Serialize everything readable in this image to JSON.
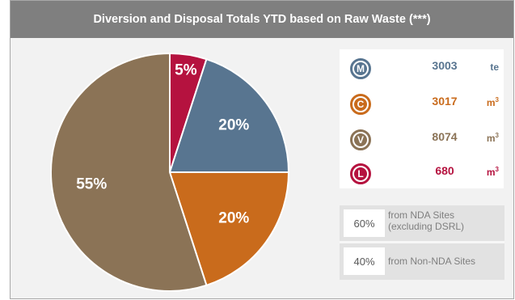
{
  "header": {
    "title": "Diversion and Disposal Totals YTD based on Raw Waste (***)"
  },
  "chart_data": {
    "type": "pie",
    "slices": [
      {
        "category": "L",
        "value": 5,
        "label": "5%",
        "color": "#b5123f"
      },
      {
        "category": "M",
        "value": 20,
        "label": "20%",
        "color": "#587590"
      },
      {
        "category": "C",
        "value": 20,
        "label": "20%",
        "color": "#c96b1c"
      },
      {
        "category": "V",
        "value": 55,
        "label": "55%",
        "color": "#8b7356"
      }
    ]
  },
  "totals": [
    {
      "letter": "M",
      "icon": "m-letter-icon",
      "value": "3003",
      "unit": "te",
      "unit_sup": "",
      "color": "#587590"
    },
    {
      "letter": "C",
      "icon": "c-letter-icon",
      "value": "3017",
      "unit": "m",
      "unit_sup": "3",
      "color": "#c96b1c"
    },
    {
      "letter": "V",
      "icon": "v-letter-icon",
      "value": "8074",
      "unit": "m",
      "unit_sup": "3",
      "color": "#8b7356"
    },
    {
      "letter": "L",
      "icon": "l-letter-icon",
      "value": "680",
      "unit": "m",
      "unit_sup": "3",
      "color": "#b5123f"
    }
  ],
  "sources": [
    {
      "percent": "60%",
      "description": "from NDA Sites (excluding DSRL)"
    },
    {
      "percent": "40%",
      "description": "from Non-NDA Sites"
    }
  ]
}
